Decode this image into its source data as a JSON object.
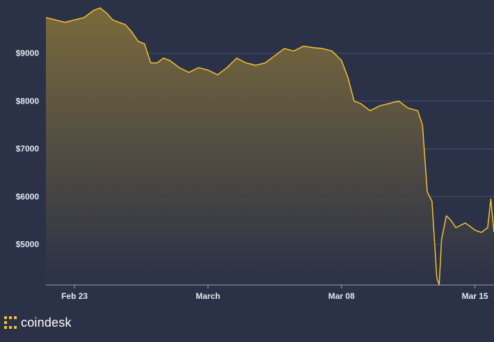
{
  "chart_data": {
    "type": "area",
    "title": "",
    "xlabel": "",
    "ylabel": "",
    "y_tick_labels": [
      "$9000",
      "$8000",
      "$7000",
      "$6000",
      "$5000"
    ],
    "y_ticks": [
      9000,
      8000,
      7000,
      6000,
      5000
    ],
    "ylim": [
      4150,
      10000
    ],
    "x_tick_labels": [
      "Feb 23",
      "March",
      "Mar 08",
      "Mar 15"
    ],
    "x_ticks": [
      "2020-02-23",
      "2020-03-01",
      "2020-03-08",
      "2020-03-15"
    ],
    "xlim": [
      "2020-02-21 12:00",
      "2020-03-16 00:00"
    ],
    "grid": true,
    "legend": "none",
    "line_color": "#f2c230",
    "area_color": "#7a6a3c",
    "background_color": "#2b3147",
    "series": [
      {
        "x": [
          "2020-02-21 12:00",
          "2020-02-22 00:00",
          "2020-02-22 12:00",
          "2020-02-23 00:00",
          "2020-02-23 12:00",
          "2020-02-24 00:00",
          "2020-02-24 08:00",
          "2020-02-24 16:00",
          "2020-02-25 00:00",
          "2020-02-25 08:00",
          "2020-02-25 16:00",
          "2020-02-26 00:00",
          "2020-02-26 08:00",
          "2020-02-26 16:00",
          "2020-02-27 00:00",
          "2020-02-27 08:00",
          "2020-02-27 16:00",
          "2020-02-28 00:00",
          "2020-02-28 12:00",
          "2020-02-29 00:00",
          "2020-02-29 12:00",
          "2020-03-01 00:00",
          "2020-03-01 12:00",
          "2020-03-02 00:00",
          "2020-03-02 12:00",
          "2020-03-03 00:00",
          "2020-03-03 12:00",
          "2020-03-04 00:00",
          "2020-03-04 12:00",
          "2020-03-05 00:00",
          "2020-03-05 12:00",
          "2020-03-06 00:00",
          "2020-03-06 12:00",
          "2020-03-07 00:00",
          "2020-03-07 12:00",
          "2020-03-08 00:00",
          "2020-03-08 08:00",
          "2020-03-08 16:00",
          "2020-03-09 00:00",
          "2020-03-09 12:00",
          "2020-03-10 00:00",
          "2020-03-10 12:00",
          "2020-03-11 00:00",
          "2020-03-11 12:00",
          "2020-03-12 00:00",
          "2020-03-12 06:00",
          "2020-03-12 12:00",
          "2020-03-12 18:00",
          "2020-03-13 00:00",
          "2020-03-13 03:00",
          "2020-03-13 06:00",
          "2020-03-13 12:00",
          "2020-03-13 18:00",
          "2020-03-14 00:00",
          "2020-03-14 12:00",
          "2020-03-15 00:00",
          "2020-03-15 08:00",
          "2020-03-15 16:00",
          "2020-03-15 20:00",
          "2020-03-16 00:00"
        ],
        "values": [
          9750,
          9700,
          9650,
          9700,
          9750,
          9900,
          9950,
          9850,
          9700,
          9650,
          9600,
          9450,
          9250,
          9200,
          8800,
          8800,
          8900,
          8850,
          8700,
          8600,
          8700,
          8650,
          8550,
          8700,
          8900,
          8800,
          8750,
          8800,
          8950,
          9100,
          9050,
          9150,
          9120,
          9100,
          9050,
          8850,
          8500,
          8000,
          7950,
          7800,
          7900,
          7950,
          8000,
          7850,
          7800,
          7500,
          6100,
          5900,
          4300,
          4150,
          5100,
          5600,
          5500,
          5350,
          5450,
          5300,
          5250,
          5350,
          5950,
          5250
        ]
      }
    ]
  },
  "brand": {
    "name": "coindesk",
    "logo_icon": "coindesk-logo-icon",
    "logo_color": "#f2c230"
  }
}
